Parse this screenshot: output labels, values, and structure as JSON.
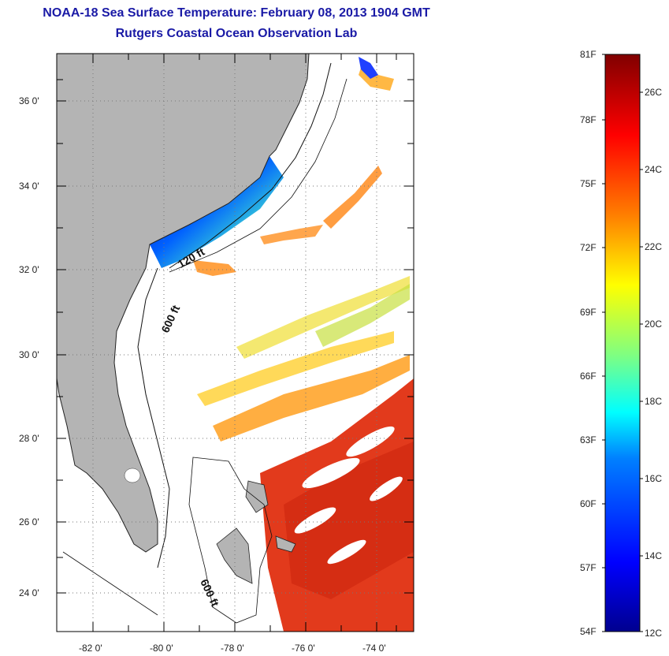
{
  "title": {
    "line1": "NOAA-18 Sea Surface Temperature:  February 08, 2013 1904 GMT",
    "line2": "Rutgers Coastal Ocean Observation Lab"
  },
  "map": {
    "lon_range": [
      -83,
      -73
    ],
    "lat_range": [
      23,
      37
    ],
    "lon_labels": [
      "-82 0'",
      "-80 0'",
      "-78 0'",
      "-76 0'",
      "-74 0'"
    ],
    "lat_labels": [
      "36 0'",
      "34 0'",
      "32 0'",
      "30 0'",
      "28 0'",
      "26 0'",
      "24 0'"
    ],
    "contour_labels": [
      "120 ft",
      "600 ft",
      "600 ft"
    ],
    "land_color": "#b4b4b4",
    "cloud_color": "#ffffff"
  },
  "colorbar": {
    "f_labels": [
      "81F",
      "78F",
      "75F",
      "72F",
      "69F",
      "66F",
      "63F",
      "60F",
      "57F",
      "54F"
    ],
    "c_labels": [
      "26C",
      "24C",
      "22C",
      "20C",
      "18C",
      "16C",
      "14C",
      "12C"
    ],
    "colors": [
      "#00008f",
      "#0000ff",
      "#0080ff",
      "#00ffff",
      "#80ff80",
      "#ffff00",
      "#ff8000",
      "#ff0000",
      "#800000"
    ]
  }
}
